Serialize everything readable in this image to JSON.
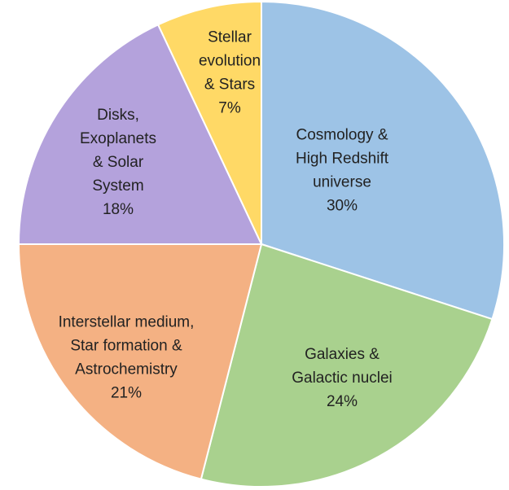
{
  "chart_data": {
    "type": "pie",
    "categories": [
      [
        "Cosmology &",
        "High Redshift",
        "universe"
      ],
      [
        "Galaxies &",
        "Galactic nuclei"
      ],
      [
        "Interstellar medium,",
        "Star formation &",
        "Astrochemistry"
      ],
      [
        "Disks,",
        "Exoplanets",
        "& Solar",
        "System"
      ],
      [
        "Stellar",
        "evolution",
        "& Stars"
      ]
    ],
    "values": [
      30,
      24,
      21,
      18,
      7
    ],
    "value_labels": [
      "30%",
      "24%",
      "21%",
      "18%",
      "7%"
    ],
    "colors": [
      "#9dc3e6",
      "#a9d18e",
      "#f4b183",
      "#b4a2dc",
      "#ffd966"
    ]
  }
}
